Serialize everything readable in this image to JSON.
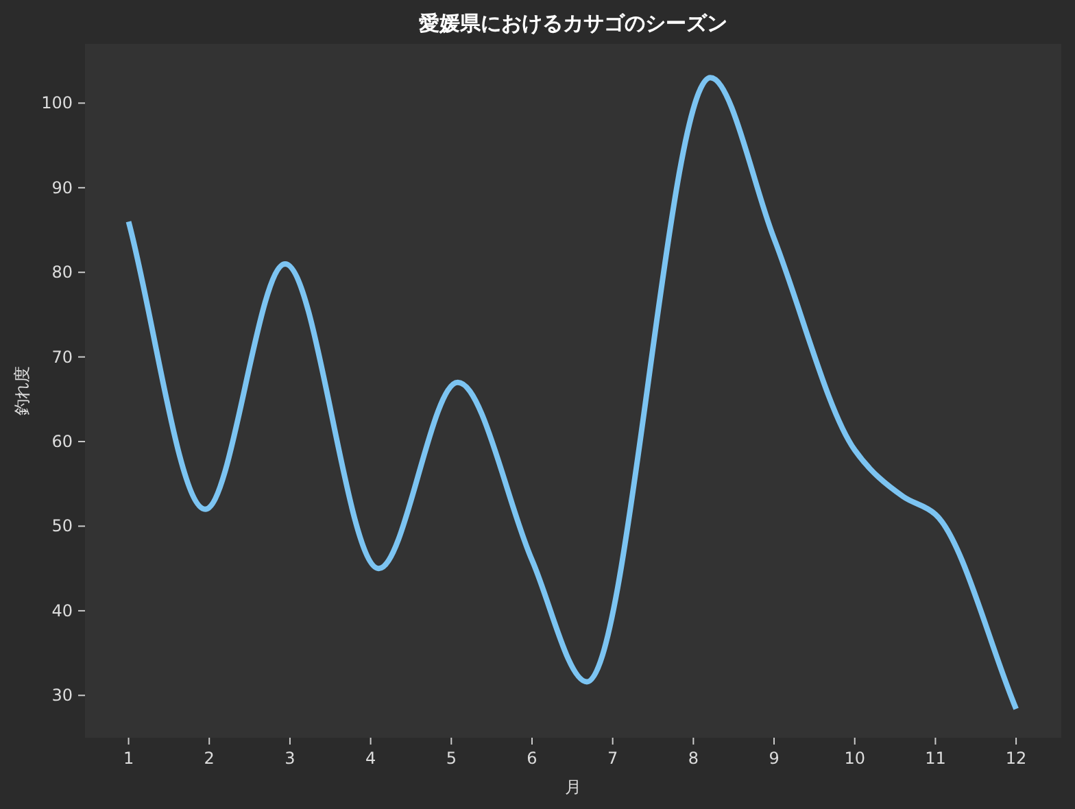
{
  "chart_data": {
    "type": "line",
    "title": "愛媛県におけるカサゴのシーズン",
    "xlabel": "月",
    "ylabel": "釣れ度",
    "x": [
      1,
      1.95,
      2.94,
      4.1,
      5.08,
      6,
      6.68,
      8.21,
      9,
      10,
      10.6,
      11,
      12
    ],
    "series": [
      {
        "color": "#7cc4f2",
        "values": [
          86,
          52,
          81,
          45,
          67,
          46,
          31.6,
          103,
          84,
          59,
          53.5,
          51.4,
          28.4
        ]
      }
    ],
    "xlim": [
      0.46,
      12.56
    ],
    "ylim": [
      25,
      107
    ],
    "xticks": [
      1,
      2,
      3,
      4,
      5,
      6,
      7,
      8,
      9,
      10,
      11,
      12
    ],
    "yticks": [
      30,
      40,
      50,
      60,
      70,
      80,
      90,
      100
    ],
    "grid": false,
    "marker": "none",
    "line_style": "solid"
  }
}
